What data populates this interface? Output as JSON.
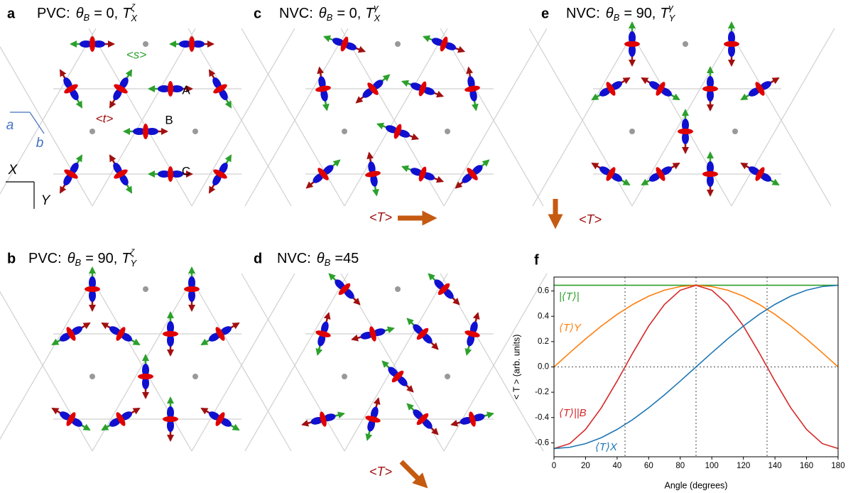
{
  "panels": [
    {
      "letter": "a",
      "prefix": "PVC:",
      "theta": "θ",
      "theta_sub": "B",
      "eq": "= 0,",
      "T": "T",
      "T_sub": "X",
      "T_sup": "ζ",
      "labels": [
        "<s>",
        "A",
        "<t>",
        "B",
        "C"
      ],
      "axes": [
        "a",
        "b",
        "X",
        "Y"
      ]
    },
    {
      "letter": "b",
      "prefix": "PVC:",
      "theta": "θ",
      "theta_sub": "B",
      "eq": "= 90,",
      "T": "T",
      "T_sub": "Y",
      "T_sup": "ζ"
    },
    {
      "letter": "c",
      "prefix": "NVC:",
      "theta": "θ",
      "theta_sub": "B",
      "eq": "= 0,",
      "T": "T",
      "T_sub": "X",
      "T_sup": "γ",
      "arrow_label": "<T>"
    },
    {
      "letter": "d",
      "prefix": "NVC:",
      "theta": "θ",
      "theta_sub": "B",
      "eq": "=45",
      "arrow_label": "<T>"
    },
    {
      "letter": "e",
      "prefix": "NVC:",
      "theta": "θ",
      "theta_sub": "B",
      "eq": "= 90,",
      "T": "T",
      "T_sub": "Y",
      "T_sup": "γ",
      "arrow_label": "<T>"
    }
  ],
  "chart_letter": "f",
  "chart_data": {
    "type": "line",
    "xlabel": "Angle (degrees)",
    "ylabel": "< T > (arb. units)",
    "x": [
      0,
      10,
      20,
      30,
      40,
      50,
      60,
      70,
      80,
      90,
      100,
      110,
      120,
      130,
      140,
      150,
      160,
      170,
      180
    ],
    "series": [
      {
        "name": "|⟨T⟩|",
        "color": "#2ca02c",
        "values": [
          0.645,
          0.645,
          0.645,
          0.645,
          0.645,
          0.645,
          0.645,
          0.645,
          0.645,
          0.645,
          0.645,
          0.645,
          0.645,
          0.645,
          0.645,
          0.645,
          0.645,
          0.645,
          0.645
        ]
      },
      {
        "name": "⟨T⟩Y",
        "color": "#ff7f0e",
        "values": [
          0,
          0.112,
          0.221,
          0.323,
          0.415,
          0.494,
          0.559,
          0.606,
          0.635,
          0.645,
          0.635,
          0.606,
          0.559,
          0.494,
          0.415,
          0.323,
          0.221,
          0.112,
          0
        ]
      },
      {
        "name": "⟨T⟩||B",
        "color": "#d62728",
        "values": [
          -0.645,
          -0.606,
          -0.494,
          -0.323,
          -0.112,
          0.112,
          0.323,
          0.494,
          0.606,
          0.645,
          0.606,
          0.494,
          0.323,
          0.112,
          -0.112,
          -0.323,
          -0.494,
          -0.606,
          -0.645
        ]
      },
      {
        "name": "⟨T⟩X",
        "color": "#1f77b4",
        "values": [
          -0.645,
          -0.635,
          -0.606,
          -0.559,
          -0.494,
          -0.415,
          -0.323,
          -0.221,
          -0.112,
          0,
          0.112,
          0.221,
          0.323,
          0.415,
          0.494,
          0.559,
          0.606,
          0.635,
          0.645
        ]
      }
    ],
    "xlim": [
      0,
      180
    ],
    "ylim": [
      -0.71,
      0.71
    ],
    "xticks": [
      0,
      20,
      40,
      60,
      80,
      100,
      120,
      140,
      160,
      180
    ],
    "yticks": [
      -0.6,
      -0.4,
      -0.2,
      {
        "value": 0,
        "label": "0.0"
      },
      0.2,
      0.4,
      0.6
    ],
    "vlines": [
      45,
      90,
      135
    ],
    "hline": 0
  }
}
